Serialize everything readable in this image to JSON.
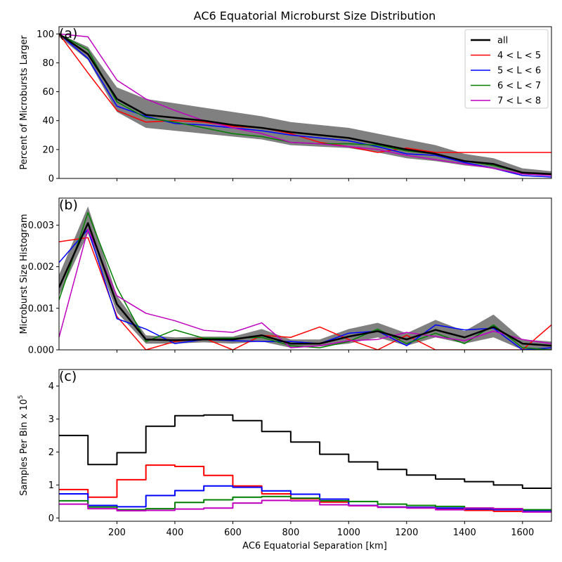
{
  "title": "AC6 Equatorial Microburst Size Distribution",
  "xlabel": "AC6 Equatorial Separation [km]",
  "colors": {
    "all": "#000000",
    "L4_5": "#ff0000",
    "L5_6": "#0000ff",
    "L6_7": "#008000",
    "L7_8": "#bf00bf",
    "band": "#808080"
  },
  "chart_data": [
    {
      "type": "line",
      "panel_label": "(a)",
      "ylabel": "Percent of Microbursts Larger",
      "xlim": [
        0,
        1700
      ],
      "ylim": [
        0,
        105
      ],
      "xticks": [
        200,
        400,
        600,
        800,
        1000,
        1200,
        1400,
        1600
      ],
      "yticks": [
        0,
        20,
        40,
        60,
        80,
        100
      ],
      "legend_position": "top-right",
      "x": [
        0,
        100,
        200,
        300,
        400,
        500,
        600,
        700,
        800,
        900,
        1000,
        1100,
        1200,
        1300,
        1400,
        1500,
        1600,
        1700
      ],
      "band": {
        "lower": [
          98,
          82,
          46,
          35,
          33,
          31,
          29,
          27,
          23,
          22,
          21,
          18,
          14,
          12,
          9,
          7,
          3,
          2
        ],
        "upper": [
          100,
          91,
          63,
          55,
          52,
          49,
          46,
          43,
          39,
          37,
          35,
          31,
          27,
          23,
          17,
          14,
          7,
          5
        ]
      },
      "series": [
        {
          "name": "all",
          "key": "all",
          "width": 2.5,
          "values": [
            100,
            86,
            55,
            44,
            42,
            40,
            37,
            35,
            32,
            30,
            28,
            24,
            20,
            17,
            12,
            10,
            4,
            3
          ]
        },
        {
          "name": "4 < L < 5",
          "key": "L4_5",
          "width": 1.5,
          "values": [
            100,
            73,
            47,
            39,
            40,
            39,
            36,
            35,
            31,
            25,
            22,
            18,
            21,
            18,
            18,
            18,
            18,
            18
          ]
        },
        {
          "name": "5 < L < 6",
          "key": "L5_6",
          "width": 1.5,
          "values": [
            100,
            83,
            50,
            43,
            38,
            37,
            35,
            33,
            30,
            28,
            26,
            22,
            17,
            16,
            11,
            7,
            2,
            1
          ]
        },
        {
          "name": "6 < L < 7",
          "key": "L6_7",
          "width": 1.5,
          "values": [
            100,
            89,
            53,
            42,
            39,
            35,
            31,
            29,
            25,
            24,
            24,
            23,
            19,
            17,
            12,
            9,
            4,
            3
          ]
        },
        {
          "name": "7 < L < 8",
          "key": "L7_8",
          "width": 1.5,
          "values": [
            100,
            98,
            68,
            55,
            47,
            40,
            35,
            31,
            25,
            24,
            22,
            20,
            16,
            13,
            10,
            7,
            3,
            2
          ]
        }
      ]
    },
    {
      "type": "line",
      "panel_label": "(b)",
      "ylabel": "Microburst Size Histogram",
      "xlim": [
        0,
        1700
      ],
      "ylim": [
        0,
        0.00365
      ],
      "xticks": [
        200,
        400,
        600,
        800,
        1000,
        1200,
        1400,
        1600
      ],
      "yticks": [
        0.0,
        0.001,
        0.002,
        0.003
      ],
      "ytick_labels": [
        "0.000",
        "0.001",
        "0.002",
        "0.003"
      ],
      "x": [
        0,
        100,
        200,
        300,
        400,
        500,
        600,
        700,
        800,
        900,
        1000,
        1100,
        1200,
        1300,
        1400,
        1500,
        1600,
        1700
      ],
      "band": {
        "lower": [
          0.0013,
          0.0028,
          0.0009,
          0.00015,
          0.00015,
          0.00018,
          0.00015,
          0.0002,
          5e-05,
          8e-05,
          0.00015,
          0.0003,
          0.0001,
          0.0003,
          0.00015,
          0.0003,
          0.0,
          0.0
        ],
        "upper": [
          0.0018,
          0.00345,
          0.0013,
          0.00035,
          0.0003,
          0.00032,
          0.00032,
          0.0005,
          0.00025,
          0.00025,
          0.0005,
          0.00065,
          0.0004,
          0.00072,
          0.00045,
          0.00085,
          0.00025,
          0.0002
        ]
      },
      "series": [
        {
          "name": "all",
          "key": "all",
          "width": 2.5,
          "values": [
            0.0015,
            0.00305,
            0.0011,
            0.00025,
            0.00023,
            0.00025,
            0.00025,
            0.00035,
            0.00015,
            0.00015,
            0.00032,
            0.00045,
            0.00025,
            0.00048,
            0.0003,
            0.00055,
            0.00015,
            0.0001
          ]
        },
        {
          "name": "4 < L < 5",
          "key": "L4_5",
          "width": 1.5,
          "values": [
            0.0026,
            0.0027,
            0.0008,
            0.0,
            0.0002,
            0.00028,
            0.0,
            0.00035,
            0.0003,
            0.00055,
            0.00025,
            0.0,
            0.00035,
            0.0,
            0.0,
            0.0,
            0.0,
            0.0006
          ]
        },
        {
          "name": "5 < L < 6",
          "key": "L5_6",
          "width": 1.5,
          "values": [
            0.0021,
            0.0029,
            0.00075,
            0.0005,
            0.00015,
            0.00025,
            0.00022,
            0.0002,
            0.0002,
            0.00015,
            0.0004,
            0.00045,
            0.0001,
            0.0006,
            0.00048,
            0.00052,
            0.0,
            5e-05
          ]
        },
        {
          "name": "6 < L < 7",
          "key": "L6_7",
          "width": 1.5,
          "values": [
            0.0012,
            0.0033,
            0.0015,
            0.0002,
            0.00048,
            0.00028,
            0.00028,
            0.0003,
            0.0001,
            5e-05,
            0.0002,
            0.0005,
            0.00015,
            0.0004,
            0.00015,
            0.0006,
            5e-05,
            0.0
          ]
        },
        {
          "name": "7 < L < 8",
          "key": "L7_8",
          "width": 1.5,
          "values": [
            0.0003,
            0.0029,
            0.0013,
            0.00088,
            0.0007,
            0.00047,
            0.00042,
            0.00065,
            5e-05,
            0.0001,
            0.00022,
            0.00025,
            0.00042,
            0.00032,
            0.00022,
            0.00045,
            0.00025,
            0.00015
          ]
        }
      ]
    },
    {
      "type": "line",
      "step": true,
      "panel_label": "(c)",
      "ylabel": "Samples Per Bin x 10",
      "ylabel_exponent": "5",
      "xlim": [
        0,
        1700
      ],
      "ylim": [
        -0.1,
        4.5
      ],
      "xticks": [
        200,
        400,
        600,
        800,
        1000,
        1200,
        1400,
        1600
      ],
      "yticks": [
        0,
        1,
        2,
        3,
        4
      ],
      "x": [
        0,
        100,
        200,
        300,
        400,
        500,
        600,
        700,
        800,
        900,
        1000,
        1100,
        1200,
        1300,
        1400,
        1500,
        1600,
        1700
      ],
      "series": [
        {
          "name": "all",
          "key": "all",
          "width": 2,
          "values": [
            2.5,
            1.62,
            1.98,
            2.78,
            3.1,
            3.12,
            2.95,
            2.62,
            2.3,
            1.93,
            1.7,
            1.47,
            1.3,
            1.18,
            1.1,
            1.0,
            0.9,
            0.9
          ]
        },
        {
          "name": "4 < L < 5",
          "key": "L4_5",
          "width": 2,
          "values": [
            0.86,
            0.63,
            1.16,
            1.6,
            1.56,
            1.29,
            0.97,
            0.73,
            0.58,
            0.48,
            0.37,
            0.33,
            0.32,
            0.27,
            0.23,
            0.2,
            0.2,
            0.2
          ]
        },
        {
          "name": "5 < L < 6",
          "key": "L5_6",
          "width": 2,
          "values": [
            0.73,
            0.38,
            0.34,
            0.68,
            0.83,
            0.97,
            0.93,
            0.82,
            0.72,
            0.57,
            0.38,
            0.33,
            0.32,
            0.3,
            0.27,
            0.25,
            0.22,
            0.22
          ]
        },
        {
          "name": "6 < L < 7",
          "key": "L6_7",
          "width": 2,
          "values": [
            0.52,
            0.33,
            0.25,
            0.28,
            0.47,
            0.55,
            0.63,
            0.65,
            0.6,
            0.52,
            0.5,
            0.42,
            0.38,
            0.35,
            0.3,
            0.28,
            0.25,
            0.25
          ]
        },
        {
          "name": "7 < L < 8",
          "key": "L7_8",
          "width": 2,
          "values": [
            0.42,
            0.28,
            0.22,
            0.23,
            0.27,
            0.3,
            0.45,
            0.53,
            0.52,
            0.4,
            0.37,
            0.32,
            0.3,
            0.25,
            0.3,
            0.28,
            0.18,
            0.18
          ]
        }
      ]
    }
  ]
}
